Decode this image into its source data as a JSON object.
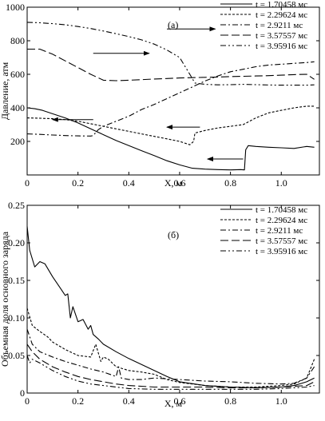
{
  "chart_data": [
    {
      "type": "line",
      "panel_label": "(а)",
      "xlabel": "X, м",
      "ylabel": "Давление, атм",
      "xlim": [
        0,
        1.15
      ],
      "ylim": [
        0,
        1000
      ],
      "x_ticks": [
        0,
        0.2,
        0.4,
        0.6,
        0.8,
        1.0
      ],
      "x_tick_labels": [
        "0",
        "0.2",
        "0.4",
        "0.6",
        "0.8",
        "1.0"
      ],
      "y_ticks": [
        200,
        400,
        600,
        800,
        1000
      ],
      "y_tick_labels": [
        "200",
        "400",
        "600",
        "800",
        "1000"
      ],
      "legend_position": "top-right",
      "series": [
        {
          "name": "t = 1.70458 мс",
          "dash": "solid",
          "x": [
            0,
            0.03,
            0.06,
            0.1,
            0.15,
            0.2,
            0.25,
            0.3,
            0.35,
            0.4,
            0.45,
            0.5,
            0.55,
            0.6,
            0.65,
            0.7,
            0.75,
            0.8,
            0.84,
            0.855,
            0.86,
            0.87,
            0.9,
            0.95,
            1.0,
            1.05,
            1.1,
            1.13
          ],
          "y": [
            400,
            395,
            385,
            365,
            340,
            310,
            275,
            240,
            205,
            175,
            145,
            115,
            85,
            60,
            40,
            35,
            32,
            30,
            32,
            30,
            150,
            175,
            170,
            165,
            162,
            158,
            170,
            165
          ]
        },
        {
          "name": "t = 2.29624 мс",
          "dash": "dashed",
          "x": [
            0,
            0.05,
            0.1,
            0.15,
            0.2,
            0.25,
            0.3,
            0.35,
            0.4,
            0.45,
            0.5,
            0.55,
            0.6,
            0.64,
            0.655,
            0.66,
            0.7,
            0.75,
            0.8,
            0.85,
            0.9,
            0.95,
            1.0,
            1.05,
            1.1,
            1.13
          ],
          "y": [
            340,
            338,
            335,
            330,
            320,
            305,
            290,
            275,
            260,
            245,
            230,
            215,
            200,
            180,
            200,
            250,
            265,
            280,
            290,
            300,
            340,
            370,
            385,
            400,
            410,
            410
          ]
        },
        {
          "name": "t = 2.9211 мс",
          "dash": "dashdot",
          "x": [
            0,
            0.05,
            0.1,
            0.15,
            0.2,
            0.25,
            0.26,
            0.28,
            0.3,
            0.35,
            0.4,
            0.45,
            0.5,
            0.55,
            0.6,
            0.65,
            0.7,
            0.75,
            0.8,
            0.85,
            0.9,
            0.95,
            1.0,
            1.05,
            1.1,
            1.13
          ],
          "y": [
            245,
            242,
            238,
            235,
            233,
            232,
            235,
            270,
            290,
            320,
            350,
            390,
            420,
            455,
            490,
            525,
            560,
            590,
            615,
            630,
            645,
            655,
            660,
            665,
            670,
            675
          ]
        },
        {
          "name": "t = 3.57557 мс",
          "dash": "longdash",
          "x": [
            0,
            0.05,
            0.1,
            0.15,
            0.2,
            0.25,
            0.3,
            0.35,
            0.4,
            0.45,
            0.5,
            0.55,
            0.6,
            0.65,
            0.7,
            0.75,
            0.8,
            0.85,
            0.9,
            0.95,
            1.0,
            1.05,
            1.1,
            1.13
          ],
          "y": [
            750,
            750,
            720,
            680,
            640,
            600,
            565,
            562,
            565,
            568,
            572,
            575,
            578,
            580,
            582,
            584,
            586,
            588,
            590,
            592,
            595,
            598,
            600,
            570
          ]
        },
        {
          "name": "t = 3.95916 мс",
          "dash": "dashdotdot",
          "x": [
            0,
            0.05,
            0.1,
            0.15,
            0.2,
            0.25,
            0.3,
            0.35,
            0.4,
            0.45,
            0.5,
            0.55,
            0.6,
            0.64,
            0.66,
            0.7,
            0.75,
            0.8,
            0.85,
            0.9,
            0.95,
            1.0,
            1.05,
            1.1,
            1.13
          ],
          "y": [
            910,
            907,
            902,
            895,
            885,
            873,
            858,
            842,
            825,
            805,
            780,
            745,
            700,
            600,
            548,
            540,
            537,
            538,
            540,
            538,
            536,
            535,
            535,
            535,
            537
          ]
        }
      ],
      "arrows": [
        {
          "from": [
            0.55,
            870
          ],
          "to": [
            0.74,
            870
          ]
        },
        {
          "from": [
            0.26,
            725
          ],
          "to": [
            0.48,
            725
          ]
        },
        {
          "from": [
            0.26,
            330
          ],
          "to": [
            0.1,
            330
          ]
        },
        {
          "from": [
            0.68,
            285
          ],
          "to": [
            0.55,
            285
          ]
        },
        {
          "from": [
            0.85,
            95
          ],
          "to": [
            0.71,
            95
          ]
        }
      ]
    },
    {
      "type": "line",
      "panel_label": "(б)",
      "xlabel": "X, м",
      "ylabel": "Объемная доля основного заряда",
      "xlim": [
        0,
        1.15
      ],
      "ylim": [
        0,
        0.25
      ],
      "x_ticks": [
        0,
        0.2,
        0.4,
        0.6,
        0.8,
        1.0
      ],
      "x_tick_labels": [
        "0",
        "0.2",
        "0.4",
        "0.6",
        "0.8",
        "1.0"
      ],
      "y_ticks": [
        0,
        0.05,
        0.1,
        0.15,
        0.2,
        0.25
      ],
      "y_tick_labels": [
        "0",
        "0.05",
        "0.10",
        "0.15",
        "0.20",
        "0.25"
      ],
      "legend_position": "top-right",
      "series": [
        {
          "name": "t = 1.70458 мс",
          "dash": "solid",
          "x": [
            0,
            0.01,
            0.03,
            0.05,
            0.07,
            0.1,
            0.13,
            0.15,
            0.16,
            0.17,
            0.18,
            0.2,
            0.22,
            0.24,
            0.25,
            0.26,
            0.28,
            0.3,
            0.35,
            0.4,
            0.45,
            0.5,
            0.55,
            0.6,
            0.7,
            0.8,
            0.9,
            1.0,
            1.05,
            1.1,
            1.13
          ],
          "y": [
            0.222,
            0.19,
            0.168,
            0.175,
            0.172,
            0.155,
            0.14,
            0.13,
            0.132,
            0.1,
            0.115,
            0.095,
            0.098,
            0.085,
            0.09,
            0.078,
            0.072,
            0.065,
            0.055,
            0.046,
            0.038,
            0.03,
            0.022,
            0.015,
            0.01,
            0.008,
            0.007,
            0.008,
            0.01,
            0.015,
            0.02
          ]
        },
        {
          "name": "t = 2.29624 мс",
          "dash": "dashed",
          "x": [
            0,
            0.02,
            0.05,
            0.08,
            0.1,
            0.15,
            0.2,
            0.25,
            0.27,
            0.29,
            0.3,
            0.32,
            0.35,
            0.4,
            0.45,
            0.5,
            0.55,
            0.6,
            0.7,
            0.8,
            0.9,
            1.0,
            1.05,
            1.1,
            1.13
          ],
          "y": [
            0.113,
            0.09,
            0.082,
            0.075,
            0.068,
            0.058,
            0.05,
            0.048,
            0.065,
            0.042,
            0.048,
            0.045,
            0.035,
            0.03,
            0.028,
            0.025,
            0.018,
            0.014,
            0.01,
            0.008,
            0.008,
            0.01,
            0.012,
            0.02,
            0.045
          ]
        },
        {
          "name": "t = 2.9211 мс",
          "dash": "dashdot",
          "x": [
            0,
            0.02,
            0.05,
            0.1,
            0.15,
            0.2,
            0.25,
            0.3,
            0.35,
            0.36,
            0.37,
            0.4,
            0.45,
            0.5,
            0.6,
            0.7,
            0.8,
            0.9,
            1.0,
            1.05,
            1.1,
            1.13
          ],
          "y": [
            0.085,
            0.065,
            0.055,
            0.048,
            0.042,
            0.037,
            0.032,
            0.028,
            0.022,
            0.035,
            0.02,
            0.018,
            0.018,
            0.02,
            0.018,
            0.016,
            0.015,
            0.013,
            0.012,
            0.013,
            0.02,
            0.035
          ]
        },
        {
          "name": "t = 3.57557 мс",
          "dash": "longdash",
          "x": [
            0,
            0.02,
            0.05,
            0.1,
            0.15,
            0.2,
            0.25,
            0.3,
            0.35,
            0.4,
            0.45,
            0.5,
            0.6,
            0.7,
            0.8,
            0.9,
            1.0,
            1.05,
            1.1,
            1.13
          ],
          "y": [
            0.065,
            0.055,
            0.045,
            0.035,
            0.028,
            0.022,
            0.018,
            0.015,
            0.012,
            0.01,
            0.009,
            0.008,
            0.008,
            0.008,
            0.007,
            0.007,
            0.008,
            0.009,
            0.01,
            0.015
          ]
        },
        {
          "name": "t = 3.95916 мс",
          "dash": "dashdotdot",
          "x": [
            0,
            0.01,
            0.02,
            0.05,
            0.1,
            0.15,
            0.2,
            0.25,
            0.3,
            0.35,
            0.4,
            0.5,
            0.6,
            0.7,
            0.8,
            0.9,
            1.0,
            1.05,
            1.1,
            1.13
          ],
          "y": [
            0.05,
            0.04,
            0.045,
            0.04,
            0.03,
            0.022,
            0.016,
            0.012,
            0.01,
            0.008,
            0.006,
            0.005,
            0.005,
            0.005,
            0.005,
            0.005,
            0.006,
            0.007,
            0.008,
            0.01
          ]
        }
      ]
    }
  ]
}
